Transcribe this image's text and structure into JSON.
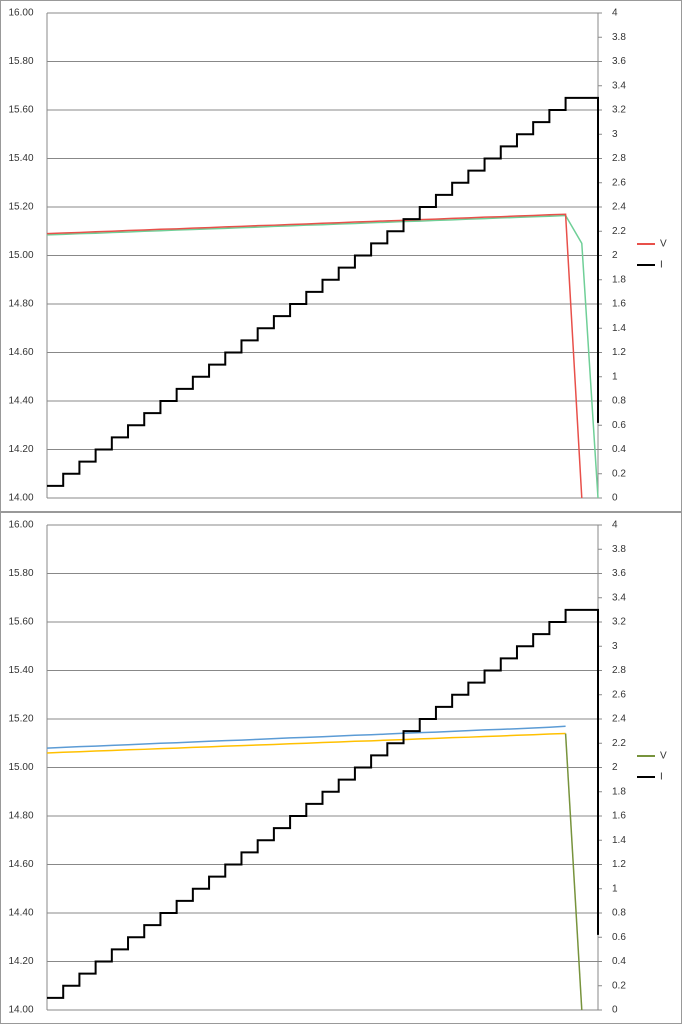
{
  "chart_data": [
    {
      "type": "line",
      "legend": "right",
      "ylim": [
        14,
        16
      ],
      "yticks": [
        {
          "value": 14,
          "label": "14.00"
        },
        {
          "value": 14.2,
          "label": "14.20"
        },
        {
          "value": 14.4,
          "label": "14.40"
        },
        {
          "value": 14.6,
          "label": "14.60"
        },
        {
          "value": 14.8,
          "label": "14.80"
        },
        {
          "value": 15,
          "label": "15.00"
        },
        {
          "value": 15.2,
          "label": "15.20"
        },
        {
          "value": 15.4,
          "label": "15.40"
        },
        {
          "value": 15.6,
          "label": "15.60"
        },
        {
          "value": 15.8,
          "label": "15.80"
        },
        {
          "value": 16,
          "label": "16.00"
        }
      ],
      "y2lim": [
        0,
        4
      ],
      "y2ticks": [
        0,
        0.2,
        0.4,
        0.6,
        0.8,
        1,
        1.2,
        1.4,
        1.6,
        1.8,
        2,
        2.2,
        2.4,
        2.6,
        2.8,
        3,
        3.2,
        3.4,
        3.6,
        3.8,
        4
      ],
      "grid": true,
      "series": [
        {
          "color": "#6fcf97",
          "values": [
            15.085,
            15.087,
            15.09,
            15.092,
            15.095,
            15.097,
            15.1,
            15.102,
            15.105,
            15.107,
            15.11,
            15.112,
            15.115,
            15.117,
            15.12,
            15.122,
            15.125,
            15.127,
            15.13,
            15.132,
            15.135,
            15.137,
            15.14,
            15.142,
            15.145,
            15.147,
            15.15,
            15.152,
            15.155,
            15.157,
            15.16,
            15.162,
            15.165,
            15.05,
            14
          ]
        },
        {
          "name": "V",
          "color": "#e8504a",
          "values": [
            15.09,
            15.093,
            15.095,
            15.098,
            15.1,
            15.103,
            15.105,
            15.108,
            15.11,
            15.113,
            15.115,
            15.118,
            15.12,
            15.123,
            15.125,
            15.128,
            15.13,
            15.133,
            15.135,
            15.138,
            15.14,
            15.143,
            15.145,
            15.148,
            15.15,
            15.153,
            15.155,
            15.158,
            15.16,
            15.163,
            15.165,
            15.168,
            15.17,
            14,
            null
          ]
        },
        {
          "name": "I",
          "color": "#000000",
          "axis": "y2",
          "step": true,
          "values": [
            0.1,
            0.2,
            0.3,
            0.4,
            0.5,
            0.6,
            0.7,
            0.8,
            0.9,
            1,
            1.1,
            1.2,
            1.3,
            1.4,
            1.5,
            1.6,
            1.7,
            1.8,
            1.9,
            2,
            2.1,
            2.2,
            2.3,
            2.4,
            2.5,
            2.6,
            2.7,
            2.8,
            2.9,
            3,
            3.1,
            3.2,
            3.3,
            3.3,
            0.62
          ]
        }
      ]
    },
    {
      "type": "line",
      "legend": "right",
      "ylim": [
        14,
        16
      ],
      "yticks": [
        {
          "value": 14,
          "label": "14.00"
        },
        {
          "value": 14.2,
          "label": "14.20"
        },
        {
          "value": 14.4,
          "label": "14.40"
        },
        {
          "value": 14.6,
          "label": "14.60"
        },
        {
          "value": 14.8,
          "label": "14.80"
        },
        {
          "value": 15,
          "label": "15.00"
        },
        {
          "value": 15.2,
          "label": "15.20"
        },
        {
          "value": 15.4,
          "label": "15.40"
        },
        {
          "value": 15.6,
          "label": "15.60"
        },
        {
          "value": 15.8,
          "label": "15.80"
        },
        {
          "value": 16,
          "label": "16.00"
        }
      ],
      "y2lim": [
        0,
        4
      ],
      "y2ticks": [
        0,
        0.2,
        0.4,
        0.6,
        0.8,
        1,
        1.2,
        1.4,
        1.6,
        1.8,
        2,
        2.2,
        2.4,
        2.6,
        2.8,
        3,
        3.2,
        3.4,
        3.6,
        3.8,
        4
      ],
      "grid": true,
      "series": [
        {
          "color": "#5b9bd5",
          "values": [
            15.08,
            15.083,
            15.086,
            15.088,
            15.091,
            15.094,
            15.097,
            15.1,
            15.102,
            15.105,
            15.108,
            15.111,
            15.113,
            15.116,
            15.119,
            15.122,
            15.124,
            15.127,
            15.13,
            15.133,
            15.135,
            15.138,
            15.141,
            15.144,
            15.146,
            15.149,
            15.152,
            15.155,
            15.157,
            15.16,
            15.163,
            15.166,
            15.17,
            null,
            null
          ]
        },
        {
          "color": "#ffc000",
          "values": [
            15.06,
            15.063,
            15.065,
            15.068,
            15.07,
            15.073,
            15.075,
            15.078,
            15.08,
            15.083,
            15.085,
            15.088,
            15.09,
            15.093,
            15.095,
            15.098,
            15.1,
            15.103,
            15.105,
            15.108,
            15.11,
            15.113,
            15.115,
            15.118,
            15.12,
            15.123,
            15.125,
            15.128,
            15.13,
            15.133,
            15.135,
            15.138,
            15.14,
            null,
            null
          ]
        },
        {
          "name": "V",
          "color": "#77933c",
          "values": [
            null,
            null,
            null,
            null,
            null,
            null,
            null,
            null,
            null,
            null,
            null,
            null,
            null,
            null,
            null,
            null,
            null,
            null,
            null,
            null,
            null,
            null,
            null,
            null,
            null,
            null,
            null,
            null,
            null,
            null,
            null,
            null,
            15.14,
            14,
            null
          ]
        },
        {
          "name": "I",
          "color": "#000000",
          "axis": "y2",
          "step": true,
          "values": [
            0.1,
            0.2,
            0.3,
            0.4,
            0.5,
            0.6,
            0.7,
            0.8,
            0.9,
            1,
            1.1,
            1.2,
            1.3,
            1.4,
            1.5,
            1.6,
            1.7,
            1.8,
            1.9,
            2,
            2.1,
            2.2,
            2.3,
            2.4,
            2.5,
            2.6,
            2.7,
            2.8,
            2.9,
            3,
            3.1,
            3.2,
            3.3,
            3.3,
            0.62
          ]
        }
      ]
    }
  ]
}
